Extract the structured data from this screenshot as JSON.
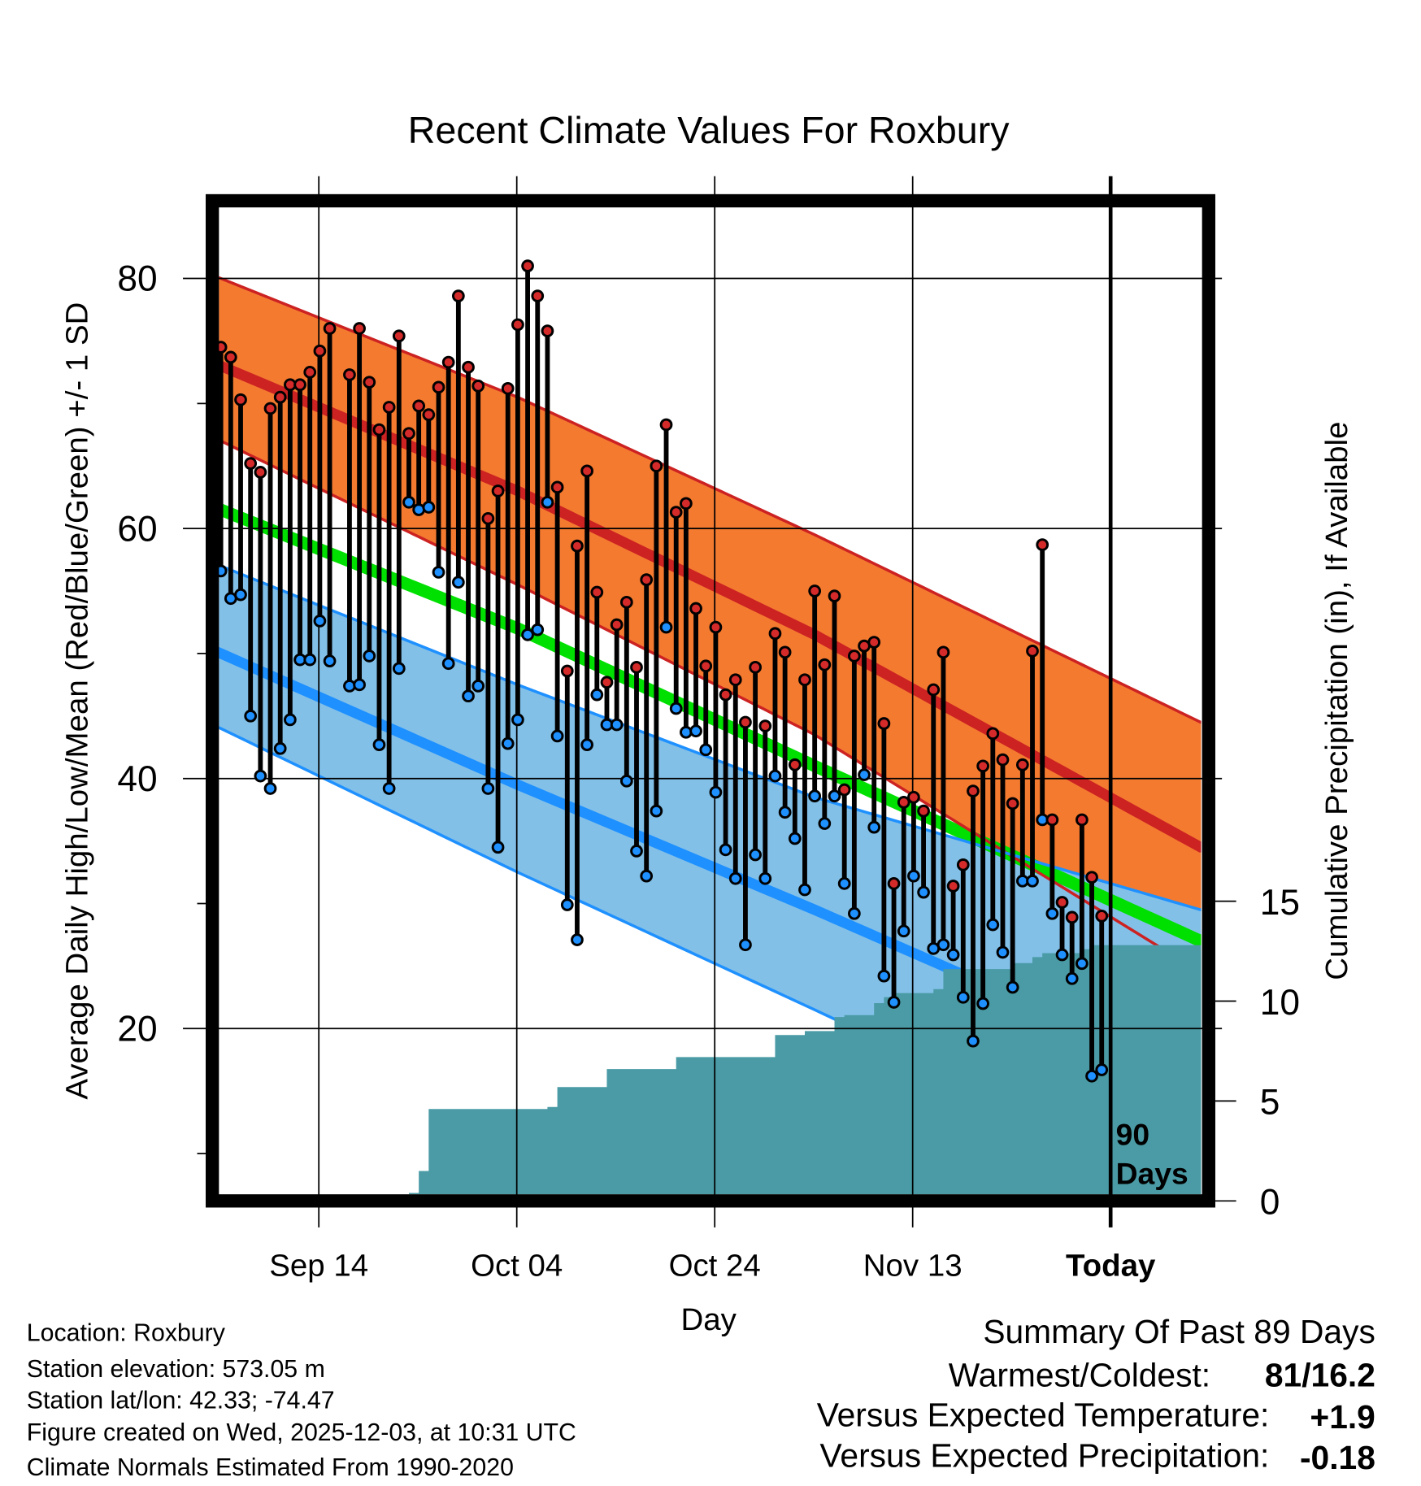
{
  "chart_data": {
    "type": "line",
    "title": "Recent Climate Values For Roxbury",
    "xlabel": "Day",
    "ylabel": "Average Daily High/Low/Mean (Red/Blue/Green) +/- 1 SD",
    "y2label": "Cumulative Precipitation (in), If Available",
    "ylim": [
      6.7,
      86.2
    ],
    "y2lim": [
      0,
      50
    ],
    "yticks": [
      "20",
      "40",
      "60",
      "80"
    ],
    "y2ticks": [
      "0",
      "5",
      "10",
      "15"
    ],
    "xticks": [
      {
        "label": "Sep 14",
        "day": 10
      },
      {
        "label": "Oct 04",
        "day": 30
      },
      {
        "label": "Oct 24",
        "day": 50
      },
      {
        "label": "Nov 13",
        "day": 70
      },
      {
        "label": "Today",
        "day": 90
      }
    ],
    "today_label": [
      "90",
      "Days"
    ],
    "grid": true,
    "observed": {
      "day": [
        0,
        1,
        2,
        3,
        4,
        5,
        6,
        7,
        8,
        9,
        10,
        11,
        13,
        14,
        15,
        16,
        17,
        18,
        19,
        20,
        21,
        22,
        23,
        24,
        25,
        26,
        27,
        28,
        29,
        30,
        31,
        32,
        33,
        34,
        35,
        36,
        37,
        38,
        39,
        40,
        41,
        42,
        43,
        44,
        45,
        46,
        47,
        48,
        49,
        50,
        51,
        52,
        53,
        54,
        55,
        56,
        57,
        58,
        59,
        60,
        61,
        62,
        63,
        64,
        65,
        66,
        67,
        68,
        69,
        70,
        71,
        72,
        73,
        74,
        75,
        76,
        77,
        78,
        79,
        80,
        81,
        82,
        83,
        84,
        85,
        86,
        87,
        88,
        89
      ],
      "high": [
        74.5,
        73.7,
        70.3,
        65.2,
        64.5,
        69.6,
        70.5,
        71.5,
        71.5,
        72.5,
        74.2,
        76.0,
        72.3,
        76.0,
        71.7,
        67.9,
        69.7,
        75.4,
        67.6,
        69.8,
        69.1,
        71.3,
        73.3,
        78.6,
        72.9,
        71.4,
        60.8,
        63.0,
        71.2,
        76.3,
        81.0,
        78.6,
        75.8,
        63.3,
        48.6,
        58.6,
        64.6,
        54.9,
        47.7,
        52.3,
        54.1,
        48.9,
        55.9,
        65.0,
        68.3,
        61.3,
        62.0,
        53.6,
        49.0,
        52.1,
        46.7,
        47.9,
        44.5,
        48.9,
        44.2,
        51.6,
        50.1,
        41.1,
        47.9,
        55.0,
        49.1,
        54.6,
        39.1,
        49.8,
        50.6,
        50.9,
        44.4,
        31.6,
        38.1,
        38.5,
        37.4,
        47.1,
        50.1,
        31.4,
        33.1,
        39.0,
        41.0,
        43.6,
        41.5,
        38.0,
        41.1,
        50.2,
        58.7,
        36.7,
        30.1,
        28.9,
        36.7,
        32.1,
        29.0
      ],
      "low": [
        56.6,
        54.4,
        54.7,
        45.0,
        40.2,
        39.2,
        42.4,
        44.7,
        49.5,
        49.5,
        52.6,
        49.4,
        47.4,
        47.5,
        49.8,
        42.7,
        39.2,
        48.8,
        62.1,
        61.5,
        61.7,
        56.5,
        49.2,
        55.7,
        46.6,
        47.4,
        39.2,
        34.5,
        42.8,
        44.7,
        51.5,
        51.9,
        62.1,
        43.4,
        29.9,
        27.1,
        42.7,
        46.7,
        44.3,
        44.3,
        39.8,
        34.2,
        32.2,
        37.4,
        52.1,
        45.6,
        43.7,
        43.8,
        42.3,
        38.9,
        34.3,
        32.0,
        26.7,
        33.9,
        32.0,
        40.2,
        37.3,
        35.2,
        31.1,
        38.6,
        36.4,
        38.6,
        31.6,
        29.2,
        40.3,
        36.1,
        24.2,
        22.1,
        27.8,
        32.2,
        30.9,
        26.4,
        26.7,
        25.9,
        22.5,
        19.0,
        22.0,
        28.3,
        26.1,
        23.3,
        31.8,
        31.8,
        36.7,
        29.2,
        25.9,
        24.0,
        25.2,
        16.2,
        16.7
      ]
    },
    "normals": {
      "day": [
        0,
        30,
        60,
        99
      ],
      "high_upper_sd": [
        80.0,
        70.5,
        59.5,
        44.5
      ],
      "high_mean": [
        73.0,
        63.0,
        51.5,
        34.5
      ],
      "high_lower_sd": [
        67.0,
        55.5,
        43.5,
        24.5
      ],
      "mean": [
        61.5,
        52.0,
        41.0,
        27.0
      ],
      "low_upper_sd": [
        57.0,
        47.5,
        38.5,
        29.5
      ],
      "low_mean": [
        50.0,
        39.5,
        29.5,
        16.0
      ],
      "low_lower_sd": [
        44.0,
        32.5,
        21.5,
        7.0
      ]
    },
    "cumulative_precip": [
      0,
      0.3,
      0.3,
      0.3,
      0.3,
      0.3,
      0.3,
      0.3,
      0.3,
      0.3,
      0.3,
      0.3,
      0.3,
      0.3,
      0.3,
      0.3,
      0.3,
      0.3,
      0.3,
      0.4,
      1.5,
      4.6,
      4.6,
      4.6,
      4.6,
      4.6,
      4.6,
      4.6,
      4.6,
      4.6,
      4.6,
      4.6,
      4.6,
      4.7,
      5.7,
      5.7,
      5.7,
      5.7,
      5.7,
      6.6,
      6.6,
      6.6,
      6.6,
      6.6,
      6.6,
      6.6,
      7.2,
      7.2,
      7.2,
      7.2,
      7.2,
      7.2,
      7.2,
      7.2,
      7.2,
      7.2,
      8.3,
      8.3,
      8.3,
      8.5,
      8.5,
      8.5,
      9.2,
      9.3,
      9.3,
      9.3,
      9.9,
      10.2,
      10.4,
      10.4,
      10.4,
      10.4,
      10.6,
      11.6,
      11.6,
      11.6,
      11.6,
      11.6,
      11.6,
      11.6,
      11.9,
      11.9,
      12.2,
      12.4,
      12.4,
      12.4,
      12.4,
      12.6,
      12.8,
      12.8
    ],
    "colors": {
      "high_band": "#f47a30",
      "high_line": "#cc2222",
      "mean_line": "#00e000",
      "low_band": "#82c0e8",
      "low_line": "#1e90ff",
      "precip": "#4a9ba5",
      "high_dot": "#d42a2a",
      "low_dot": "#1e90ff"
    }
  },
  "footer": {
    "location": "Location: Roxbury",
    "elevation": "Station elevation: 573.05 m",
    "latlon": "Station lat/lon: 42.33; -74.47",
    "created": "Figure created on Wed, 2025-12-03, at 10:31 UTC",
    "normals": "Climate Normals Estimated From 1990-2020"
  },
  "summary": {
    "title": "Summary Of Past 89 Days",
    "warmest_label": "Warmest/Coldest:",
    "warmest_value": "81/16.2",
    "temp_label": "Versus Expected Temperature:",
    "temp_value": "+1.9",
    "precip_label": "Versus Expected Precipitation:",
    "precip_value": "-0.18",
    "temp_color": "#d42a2a",
    "precip_color": "#a0522d"
  }
}
